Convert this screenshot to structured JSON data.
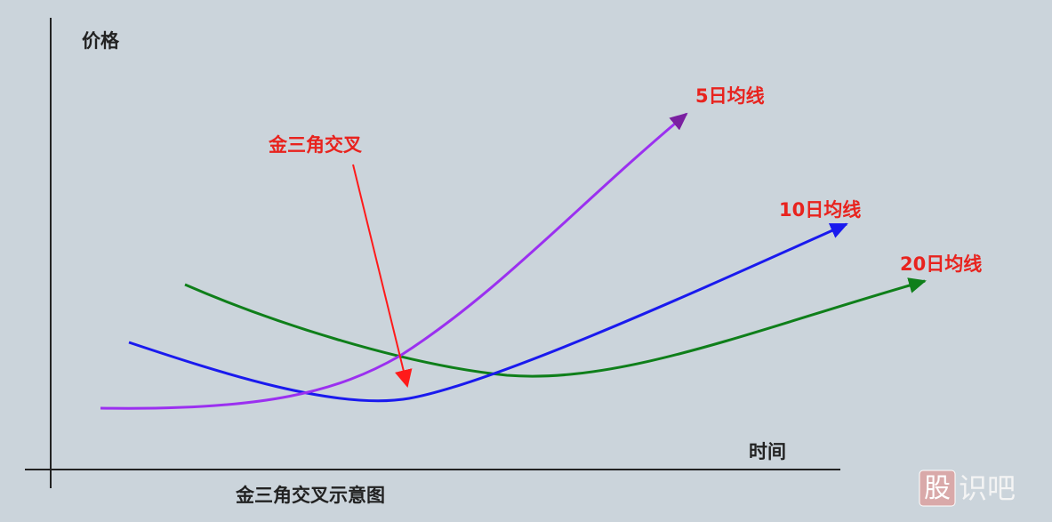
{
  "axes": {
    "y_label": "价格",
    "x_label": "时间"
  },
  "lines": [
    {
      "label": "5日均线"
    },
    {
      "label": "10日均线"
    },
    {
      "label": "20日均线"
    }
  ],
  "annotation": "金三角交叉",
  "caption": "金三角交叉示意图",
  "watermark": {
    "box": "股",
    "text": "识吧"
  }
}
